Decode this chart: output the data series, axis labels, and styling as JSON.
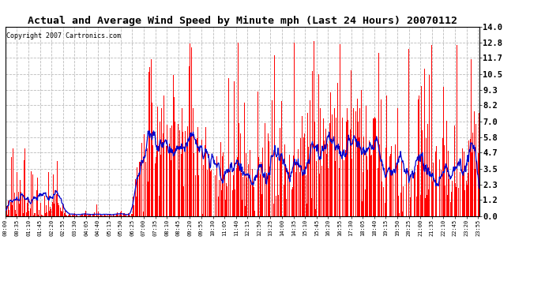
{
  "title": "Actual and Average Wind Speed by Minute mph (Last 24 Hours) 20070112",
  "copyright": "Copyright 2007 Cartronics.com",
  "yticks": [
    0.0,
    1.2,
    2.3,
    3.5,
    4.7,
    5.8,
    7.0,
    8.2,
    9.3,
    10.5,
    11.7,
    12.8,
    14.0
  ],
  "ylim": [
    0.0,
    14.0
  ],
  "bar_color": "#FF0000",
  "line_color": "#0000CC",
  "background_color": "#FFFFFF",
  "grid_color": "#BBBBBB",
  "title_fontsize": 9.5,
  "copyright_fontsize": 6,
  "xtick_fontsize": 5,
  "ytick_fontsize": 7.5
}
